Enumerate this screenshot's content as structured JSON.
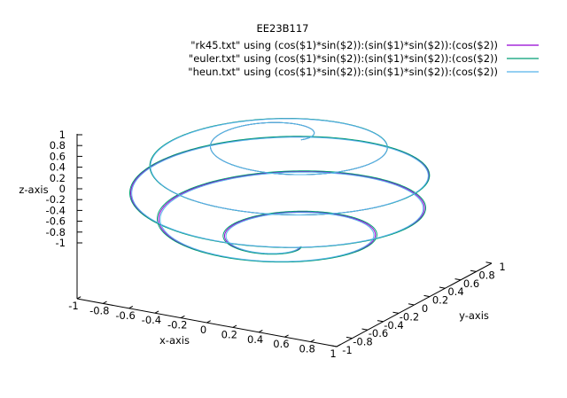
{
  "chart_data": {
    "type": "line3d",
    "title": "EE23B117",
    "xlabel": "x-axis",
    "ylabel": "y-axis",
    "zlabel": "z-axis",
    "xlim": [
      -1,
      1
    ],
    "ylim": [
      -1,
      1
    ],
    "zlim": [
      -1,
      1
    ],
    "x_ticks": [
      "-1",
      "-0.8",
      "-0.6",
      "-0.4",
      "-0.2",
      "0",
      "0.2",
      "0.4",
      "0.6",
      "0.8",
      "1"
    ],
    "y_ticks": [
      "-1",
      "-0.8",
      "-0.6",
      "-0.4",
      "-0.2",
      "0",
      "0.2",
      "0.4",
      "0.6",
      "0.8",
      "1"
    ],
    "z_ticks": [
      "-1",
      "-0.8",
      "-0.6",
      "-0.4",
      "-0.2",
      "0",
      "0.2",
      "0.4",
      "0.6",
      "0.8",
      "1"
    ],
    "grid": false,
    "legend_position": "top-right",
    "curve": {
      "description": "spiral on unit sphere: x=cos(phi)sin(theta), y=sin(phi)sin(theta), z=cos(theta)",
      "turns": 5,
      "theta_range": [
        0.15,
        3.0
      ]
    },
    "series": [
      {
        "name": "\"rk45.txt\" using (cos($1)*sin($2)):(sin($1)*sin($2)):(cos($2))",
        "color": "#9400d3"
      },
      {
        "name": "\"euler.txt\" using (cos($1)*sin($2)):(sin($1)*sin($2)):(cos($2))",
        "color": "#009e73"
      },
      {
        "name": "\"heun.txt\" using (cos($1)*sin($2)):(sin($1)*sin($2)):(cos($2))",
        "color": "#56b4e9"
      }
    ]
  }
}
